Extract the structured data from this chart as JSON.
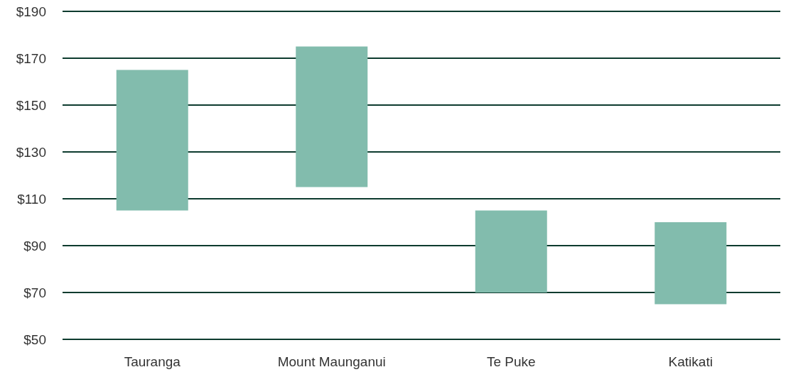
{
  "chart_data": {
    "type": "bar",
    "categories": [
      "Tauranga",
      "Mount Maunganui",
      "Te Puke",
      "Katikati"
    ],
    "values": [
      60,
      60,
      35,
      35
    ],
    "base": [
      105,
      115,
      70,
      65
    ],
    "color": "#82bcad",
    "ylim": [
      50,
      190
    ],
    "yticks": [
      {
        "value": 50,
        "label": "$50"
      },
      {
        "value": 70,
        "label": "$70"
      },
      {
        "value": 90,
        "label": "$90"
      },
      {
        "value": 110,
        "label": "$110"
      },
      {
        "value": 130,
        "label": "$130"
      },
      {
        "value": 150,
        "label": "$150"
      },
      {
        "value": 170,
        "label": "$170"
      },
      {
        "value": 190,
        "label": "$190"
      }
    ],
    "grid": "y"
  }
}
